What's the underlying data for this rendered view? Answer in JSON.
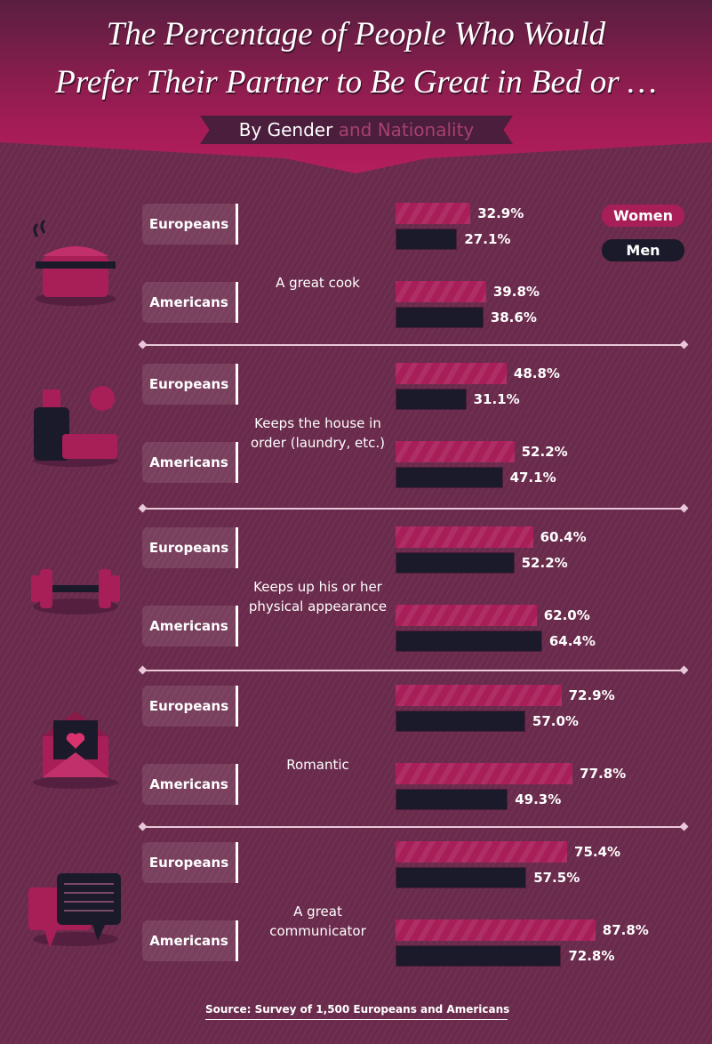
{
  "header": {
    "title_line1": "The Percentage of People Who Would",
    "title_line2": "Prefer Their Partner to Be Great in Bed or …",
    "subtitle_a": "By Gender",
    "subtitle_b": "and Nationality"
  },
  "legend": {
    "women": "Women",
    "men": "Men"
  },
  "colors": {
    "women": "#a81f58",
    "men": "#1a1a2a",
    "background": "#6a2a4b"
  },
  "source": "Source: Survey of 1,500 Europeans and Americans",
  "chart_data": {
    "type": "bar",
    "orientation": "horizontal",
    "unit": "%",
    "legend_position": "top-right",
    "series_names": [
      "Women",
      "Men"
    ],
    "groups": [
      {
        "category": "A great cook",
        "icon": "cooking-pot-icon",
        "rows": [
          {
            "label": "Europeans",
            "women": 32.9,
            "men": 27.1,
            "women_label": "32.9%",
            "men_label": "27.1%"
          },
          {
            "label": "Americans",
            "women": 39.8,
            "men": 38.6,
            "women_label": "39.8%",
            "men_label": "38.6%"
          }
        ]
      },
      {
        "category": "Keeps the house in order (laundry, etc.)",
        "icon": "cleaning-spray-icon",
        "rows": [
          {
            "label": "Europeans",
            "women": 48.8,
            "men": 31.1,
            "women_label": "48.8%",
            "men_label": "31.1%"
          },
          {
            "label": "Americans",
            "women": 52.2,
            "men": 47.1,
            "women_label": "52.2%",
            "men_label": "47.1%"
          }
        ]
      },
      {
        "category": "Keeps up his or her physical appearance",
        "icon": "dumbbell-icon",
        "rows": [
          {
            "label": "Europeans",
            "women": 60.4,
            "men": 52.2,
            "women_label": "60.4%",
            "men_label": "52.2%"
          },
          {
            "label": "Americans",
            "women": 62.0,
            "men": 64.4,
            "women_label": "62.0%",
            "men_label": "64.4%"
          }
        ]
      },
      {
        "category": "Romantic",
        "icon": "love-letter-icon",
        "rows": [
          {
            "label": "Europeans",
            "women": 72.9,
            "men": 57.0,
            "women_label": "72.9%",
            "men_label": "57.0%"
          },
          {
            "label": "Americans",
            "women": 77.8,
            "men": 49.3,
            "women_label": "77.8%",
            "men_label": "49.3%"
          }
        ]
      },
      {
        "category": "A great communicator",
        "icon": "chat-bubbles-icon",
        "rows": [
          {
            "label": "Europeans",
            "women": 75.4,
            "men": 57.5,
            "women_label": "75.4%",
            "men_label": "57.5%"
          },
          {
            "label": "Americans",
            "women": 87.8,
            "men": 72.8,
            "women_label": "87.8%",
            "men_label": "72.8%"
          }
        ]
      }
    ]
  }
}
